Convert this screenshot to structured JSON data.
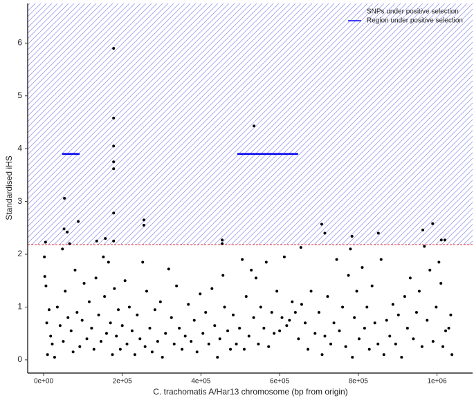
{
  "chart_data": {
    "type": "scatter",
    "x_label": "C. trachomatis A/Har13 chromosome (bp from origin)",
    "y_label": "Standardised iHS",
    "hatch_label": "SNPs under positive selection",
    "region_label": "Region under positive selection",
    "point_color": "#000000",
    "region_color": "#0000ee",
    "threshold_color": "#e41a1c",
    "hatch_color": "#9c9cf0",
    "threshold": 2.18,
    "regions": [
      {
        "x": [
          47500,
          91500
        ],
        "y": 3.9
      },
      {
        "x": [
          492500,
          647000
        ],
        "y": 3.9
      }
    ],
    "xlim": [
      -40460,
      1090600
    ],
    "ylim": [
      -0.25,
      6.75
    ],
    "xticks": [
      {
        "value": 0,
        "label": "0e+00"
      },
      {
        "value": 200000,
        "label": "2e+05"
      },
      {
        "value": 400000,
        "label": "4e+05"
      },
      {
        "value": 600000,
        "label": "6e+05"
      },
      {
        "value": 800000,
        "label": "8e+05"
      },
      {
        "value": 1000000,
        "label": "1e+06"
      }
    ],
    "yticks": [
      0,
      1,
      2,
      3,
      4,
      5,
      6
    ],
    "x": [
      5000,
      53000,
      52000,
      60000,
      88000,
      135000,
      157000,
      178000,
      178000,
      178000,
      178000,
      178000,
      178000,
      178000,
      255000,
      255000,
      454000,
      454000,
      535000,
      654000,
      707000,
      715000,
      784000,
      851000,
      964000,
      989000,
      1011000,
      1020000,
      2000,
      3000,
      6000,
      8000,
      10000,
      14000,
      18000,
      22000,
      28000,
      35000,
      42000,
      48000,
      50000,
      55000,
      62000,
      66000,
      70000,
      75000,
      80000,
      85000,
      92000,
      98000,
      103000,
      110000,
      116000,
      122000,
      128000,
      133000,
      140000,
      146000,
      152000,
      155000,
      160000,
      165000,
      170000,
      175000,
      180000,
      185000,
      190000,
      195000,
      200000,
      207000,
      212000,
      218000,
      225000,
      232000,
      238000,
      245000,
      252000,
      258000,
      262000,
      270000,
      276000,
      283000,
      290000,
      297000,
      302000,
      310000,
      318000,
      325000,
      332000,
      338000,
      345000,
      352000,
      360000,
      368000,
      375000,
      383000,
      390000,
      398000,
      405000,
      412000,
      420000,
      428000,
      435000,
      442000,
      448000,
      456000,
      460000,
      468000,
      475000,
      482000,
      490000,
      498000,
      505000,
      510000,
      515000,
      522000,
      528000,
      534000,
      540000,
      546000,
      552000,
      560000,
      566000,
      572000,
      580000,
      586000,
      593000,
      600000,
      606000,
      612000,
      618000,
      625000,
      632000,
      640000,
      648000,
      656000,
      665000,
      672000,
      680000,
      690000,
      700000,
      708000,
      715000,
      722000,
      730000,
      738000,
      745000,
      752000,
      760000,
      768000,
      775000,
      780000,
      785000,
      790000,
      796000,
      802000,
      810000,
      816000,
      822000,
      828000,
      835000,
      842000,
      850000,
      858000,
      865000,
      872000,
      880000,
      888000,
      895000,
      902000,
      910000,
      918000,
      925000,
      932000,
      940000,
      948000,
      955000,
      962000,
      968000,
      975000,
      982000,
      990000,
      998000,
      1005000,
      1010000,
      1015000,
      1022000,
      1030000,
      1035000,
      1038000
    ],
    "values": [
      2.23,
      3.06,
      2.48,
      2.42,
      2.62,
      2.25,
      2.3,
      5.9,
      4.58,
      4.05,
      3.75,
      3.62,
      2.78,
      2.25,
      2.65,
      2.55,
      2.27,
      2.2,
      4.43,
      2.13,
      2.57,
      2.4,
      2.34,
      2.4,
      2.46,
      2.58,
      2.27,
      2.27,
      1.95,
      1.58,
      1.4,
      0.7,
      0.1,
      0.95,
      0.45,
      0.3,
      0.05,
      1.0,
      0.65,
      2.1,
      0.35,
      1.3,
      0.8,
      2.2,
      0.55,
      0.15,
      1.7,
      0.9,
      0.25,
      0.75,
      1.45,
      0.4,
      1.1,
      0.6,
      0.2,
      1.55,
      0.85,
      0.35,
      1.95,
      1.2,
      0.5,
      1.85,
      0.7,
      0.1,
      1.35,
      0.45,
      0.95,
      0.2,
      0.65,
      1.5,
      0.3,
      1.0,
      0.55,
      0.1,
      0.85,
      0.4,
      1.85,
      0.25,
      1.3,
      0.6,
      0.15,
      0.95,
      0.35,
      1.1,
      0.05,
      0.5,
      1.72,
      0.8,
      0.3,
      1.4,
      0.6,
      0.2,
      0.45,
      1.05,
      0.35,
      0.75,
      0.15,
      1.25,
      0.5,
      0.9,
      0.3,
      1.35,
      0.65,
      0.05,
      0.4,
      1.6,
      1.0,
      0.55,
      0.2,
      0.85,
      0.3,
      0.6,
      1.9,
      0.2,
      1.2,
      0.45,
      1.7,
      0.8,
      1.55,
      0.3,
      1.0,
      0.6,
      1.85,
      0.25,
      0.9,
      0.5,
      1.3,
      0.55,
      0.8,
      1.95,
      0.65,
      0.75,
      1.1,
      0.9,
      0.4,
      1.05,
      0.7,
      0.2,
      1.3,
      0.5,
      0.9,
      0.1,
      0.45,
      1.2,
      0.3,
      0.7,
      1.9,
      0.55,
      1.0,
      0.25,
      1.6,
      2.1,
      0.05,
      0.8,
      1.3,
      0.4,
      1.75,
      0.6,
      1.0,
      0.2,
      1.4,
      0.7,
      0.3,
      1.9,
      0.1,
      0.75,
      0.45,
      1.05,
      0.3,
      0.85,
      0.05,
      1.2,
      0.6,
      1.55,
      0.4,
      0.9,
      1.3,
      0.25,
      2.15,
      0.75,
      1.7,
      0.35,
      1.0,
      1.85,
      1.45,
      0.25,
      0.55,
      0.6,
      0.85,
      0.1
    ]
  }
}
